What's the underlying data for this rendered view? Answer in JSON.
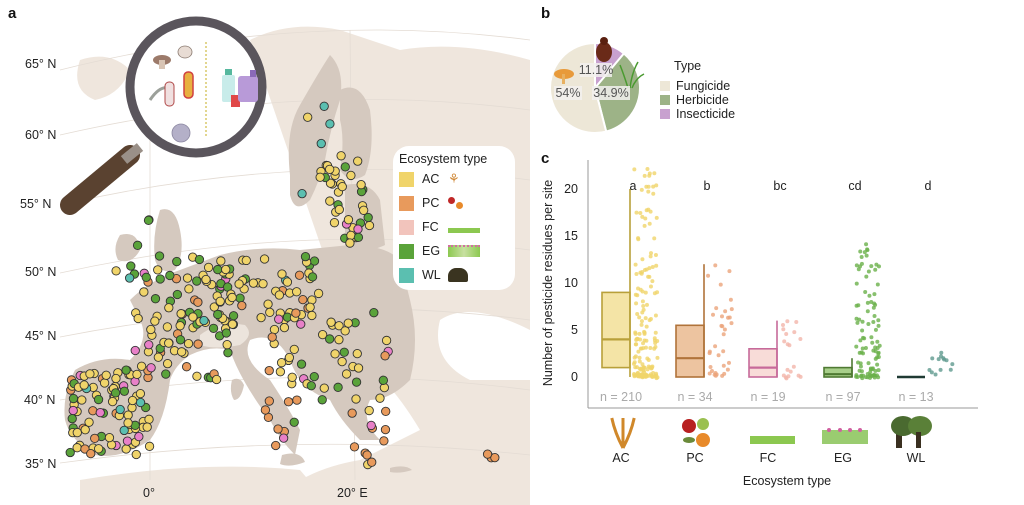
{
  "panels": {
    "a": "a",
    "b": "b",
    "c": "c"
  },
  "map": {
    "lat_labels": [
      "65° N",
      "60° N",
      "55° N",
      "50° N",
      "45° N",
      "40° N",
      "35° N"
    ],
    "lon_labels": [
      "0°",
      "20° E"
    ],
    "legend": {
      "title": "Ecosystem type",
      "items": [
        {
          "code": "AC",
          "color": "#f0d46a",
          "icon": "wheat-icon"
        },
        {
          "code": "PC",
          "color": "#e89a5c",
          "icon": "fruit-icon"
        },
        {
          "code": "FC",
          "color": "#f2c4bc",
          "icon": "grass-icon"
        },
        {
          "code": "EG",
          "color": "#5aa33a",
          "icon": "wildflower-meadow-icon"
        },
        {
          "code": "WL",
          "color": "#5bbfb0",
          "icon": "trees-icon"
        }
      ]
    },
    "magnifier": {
      "icons": [
        "mushroom-icon",
        "mite-icon",
        "worm-icon",
        "bacterium-icon",
        "bacillus-icon",
        "virus-particle-icon",
        "pesticide-bottle-icon",
        "pesticide-canister-icon"
      ]
    },
    "land_color": "#d5c9bf",
    "sea_color": "#ffffff",
    "outside_land_color": "#efe6dd"
  },
  "chart_data": [
    {
      "type": "pie",
      "title": "Type",
      "slices": [
        {
          "label": "Fungicide",
          "value": 54.0,
          "text": "54%",
          "color": "#ede7d7",
          "icon": "mushroom-icon"
        },
        {
          "label": "Herbicide",
          "value": 34.9,
          "text": "34.9%",
          "color": "#9db387",
          "icon": "grass-tuft-icon"
        },
        {
          "label": "Insecticide",
          "value": 11.1,
          "text": "11.1%",
          "color": "#c8a1cf",
          "icon": "beetle-icon"
        }
      ]
    },
    {
      "type": "box",
      "xlabel": "Ecosystem type",
      "ylabel": "Number of pesticide residues per site",
      "ylim": [
        -3,
        23
      ],
      "yticks": [
        0,
        5,
        10,
        15,
        20
      ],
      "categories": [
        "AC",
        "PC",
        "FC",
        "EG",
        "WL"
      ],
      "groups": [
        {
          "name": "AC",
          "n_label": "n = 210",
          "n": 210,
          "sig": "a",
          "q1": 1,
          "median": 4,
          "q3": 9,
          "whisker_low": 0,
          "whisker_high": 20,
          "color": "#b8a03a",
          "fill": "#f4e4a6",
          "point_color": "#f0d46a",
          "max_point": 22,
          "icon": "wheat-icon"
        },
        {
          "name": "PC",
          "n_label": "n = 34",
          "n": 34,
          "sig": "b",
          "q1": 0,
          "median": 2,
          "q3": 5.5,
          "whisker_low": 0,
          "whisker_high": 12,
          "color": "#b0733a",
          "fill": "#edc4a0",
          "point_color": "#eba47a",
          "max_point": 12,
          "icon": "fruit-icon"
        },
        {
          "name": "FC",
          "n_label": "n = 19",
          "n": 19,
          "sig": "bc",
          "q1": 0,
          "median": 1,
          "q3": 3,
          "whisker_low": 0,
          "whisker_high": 6,
          "color": "#c76a9a",
          "fill": "#f8dcd8",
          "point_color": "#f3b5aa",
          "max_point": 6,
          "icon": "grass-icon"
        },
        {
          "name": "EG",
          "n_label": "n = 97",
          "n": 97,
          "sig": "cd",
          "q1": 0,
          "median": 0.3,
          "q3": 1,
          "whisker_low": 0,
          "whisker_high": 2,
          "color": "#4f7a33",
          "fill": "#a8cf8a",
          "point_color": "#6ab04a",
          "max_point": 14,
          "icon": "wildflower-meadow-icon"
        },
        {
          "name": "WL",
          "n_label": "n = 13",
          "n": 13,
          "sig": "d",
          "q1": 0,
          "median": 0,
          "q3": 0,
          "whisker_low": 0,
          "whisker_high": 0,
          "color": "#1f3a33",
          "fill": "#1f3a33",
          "point_color": "#5f9a8f",
          "max_point": 2.5,
          "icon": "trees-icon"
        }
      ]
    }
  ]
}
